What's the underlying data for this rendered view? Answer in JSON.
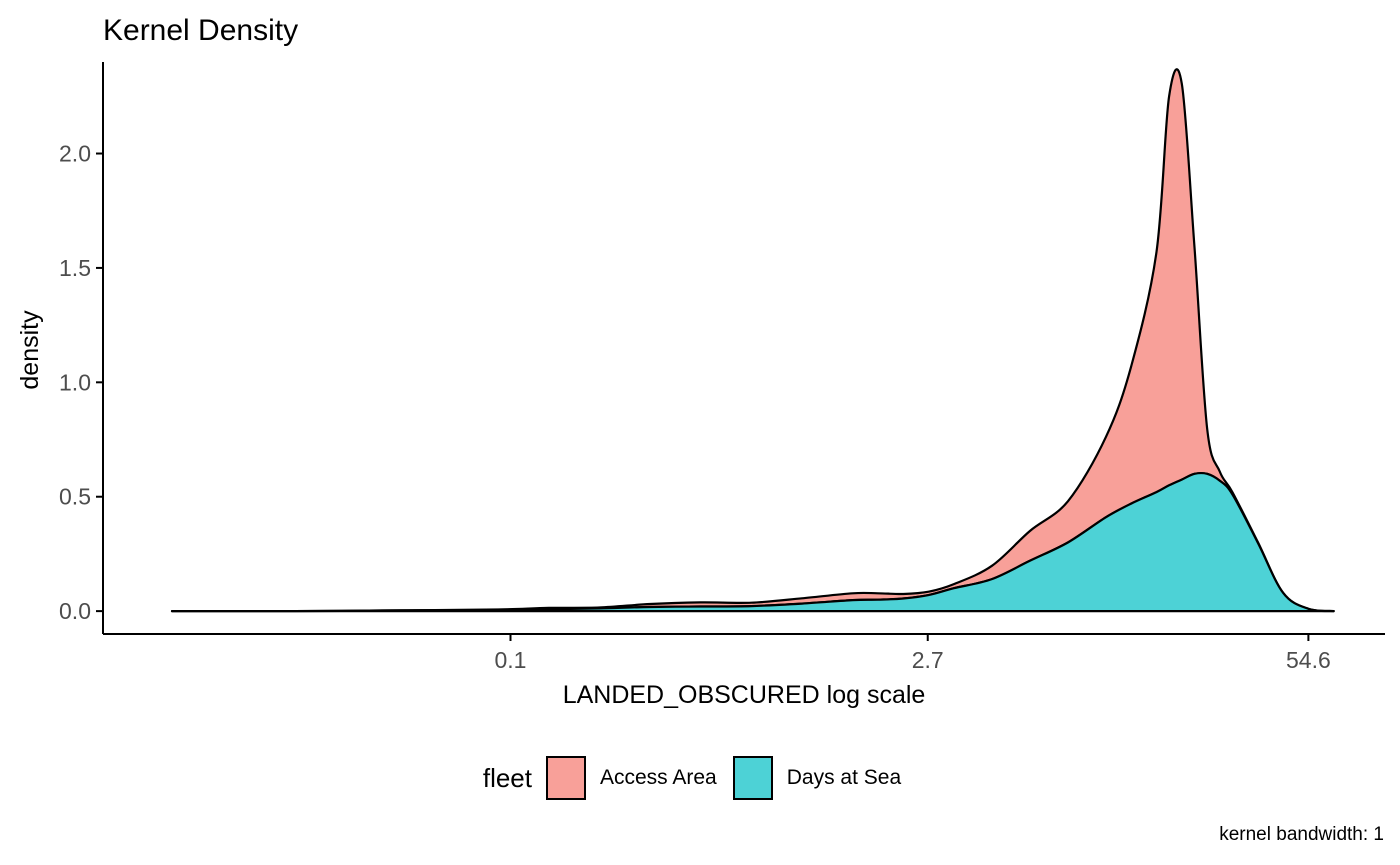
{
  "chart_data": {
    "type": "area",
    "title": "Kernel Density",
    "xlabel": "LANDED_OBSCURED  log scale",
    "ylabel": "density",
    "x_scale": "log",
    "x_ticks": [
      {
        "value": 0.1,
        "label": "0.1"
      },
      {
        "value": 2.7,
        "label": "2.7"
      },
      {
        "value": 54.6,
        "label": "54.6"
      }
    ],
    "y_ticks": [
      {
        "value": 0.0,
        "label": "0.0"
      },
      {
        "value": 0.5,
        "label": "0.5"
      },
      {
        "value": 1.0,
        "label": "1.0"
      },
      {
        "value": 1.5,
        "label": "1.5"
      },
      {
        "value": 2.0,
        "label": "2.0"
      }
    ],
    "xlim": [
      0.004,
      100
    ],
    "ylim": [
      -0.1,
      2.4
    ],
    "stacked": true,
    "grid": false,
    "legend_position": "bottom",
    "legend_title": "fleet",
    "caption": "kernel bandwidth: 1",
    "x": [
      0.0069,
      0.0183,
      0.0498,
      0.0907,
      0.1353,
      0.2019,
      0.3012,
      0.4493,
      0.6703,
      1.0,
      1.4918,
      1.8221,
      2.2255,
      2.7183,
      3.3201,
      4.4817,
      6.0496,
      8.1662,
      11.0232,
      13.4637,
      16.4446,
      18.1741,
      20.0855,
      22.198,
      24.5325,
      27.1126,
      29.9641,
      36.5982,
      44.7012,
      54.5982,
      66.6863
    ],
    "series": [
      {
        "name": "Access Area",
        "color": "#F8A099",
        "values": [
          0.0,
          0.0,
          0.0,
          0.003,
          0.006,
          0.004,
          0.013,
          0.018,
          0.015,
          0.023,
          0.03,
          0.028,
          0.02,
          0.015,
          0.018,
          0.058,
          0.13,
          0.18,
          0.35,
          0.6,
          1.05,
          1.7,
          1.73,
          0.99,
          0.2,
          0.04,
          0.01,
          0.003,
          0.0,
          0.0,
          0.0
        ]
      },
      {
        "name": "Days at Sea",
        "color": "#4DD2D6",
        "values": [
          0.0,
          0.0,
          0.004,
          0.004,
          0.008,
          0.012,
          0.018,
          0.02,
          0.022,
          0.033,
          0.048,
          0.05,
          0.055,
          0.07,
          0.1,
          0.14,
          0.22,
          0.3,
          0.41,
          0.47,
          0.52,
          0.55,
          0.575,
          0.6,
          0.6,
          0.57,
          0.51,
          0.3,
          0.08,
          0.01,
          0.0
        ]
      }
    ],
    "colors": {
      "axis": "#000000",
      "tick_label": "#4D4D4D",
      "outline": "#000000",
      "background": "#FFFFFF"
    }
  }
}
